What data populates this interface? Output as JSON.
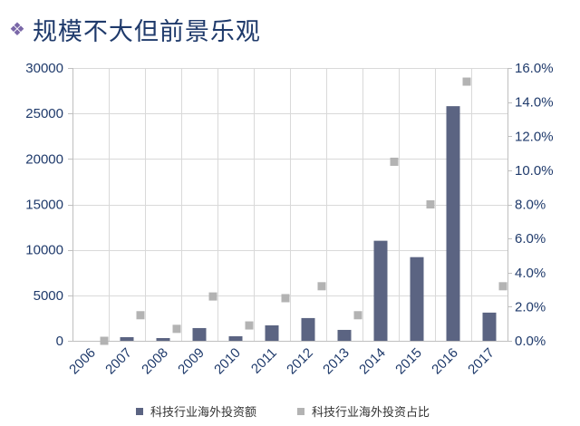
{
  "header": {
    "title": "规模不大但前景乐观",
    "icon": "four-diamonds-icon"
  },
  "chart_data": {
    "type": "bar",
    "categories": [
      "2006",
      "2007",
      "2008",
      "2009",
      "2010",
      "2011",
      "2012",
      "2013",
      "2014",
      "2015",
      "2016",
      "2017"
    ],
    "series": [
      {
        "name": "科技行业海外投资额",
        "type": "bar",
        "axis": "left",
        "color": "#5b6482",
        "values": [
          0,
          400,
          300,
          1400,
          500,
          1700,
          2500,
          1200,
          11000,
          9200,
          25800,
          3100
        ]
      },
      {
        "name": "科技行业海外投资占比",
        "type": "scatter",
        "axis": "right",
        "color": "#b3b3b3",
        "values": [
          0.0,
          1.5,
          0.7,
          2.6,
          0.9,
          2.5,
          3.2,
          1.5,
          10.5,
          8.0,
          15.2,
          3.2
        ]
      }
    ],
    "y_left": {
      "ylim": [
        0,
        30000
      ],
      "ticks": [
        0,
        5000,
        10000,
        15000,
        20000,
        25000,
        30000
      ],
      "tick_labels": [
        "0",
        "5000",
        "10000",
        "15000",
        "20000",
        "25000",
        "30000"
      ]
    },
    "y_right": {
      "ylim": [
        0,
        16
      ],
      "ticks": [
        0,
        2,
        4,
        6,
        8,
        10,
        12,
        14,
        16
      ],
      "tick_labels": [
        "0.0%",
        "2.0%",
        "4.0%",
        "6.0%",
        "8.0%",
        "10.0%",
        "12.0%",
        "14.0%",
        "16.0%"
      ]
    },
    "grid": true,
    "legend": "bottom"
  }
}
